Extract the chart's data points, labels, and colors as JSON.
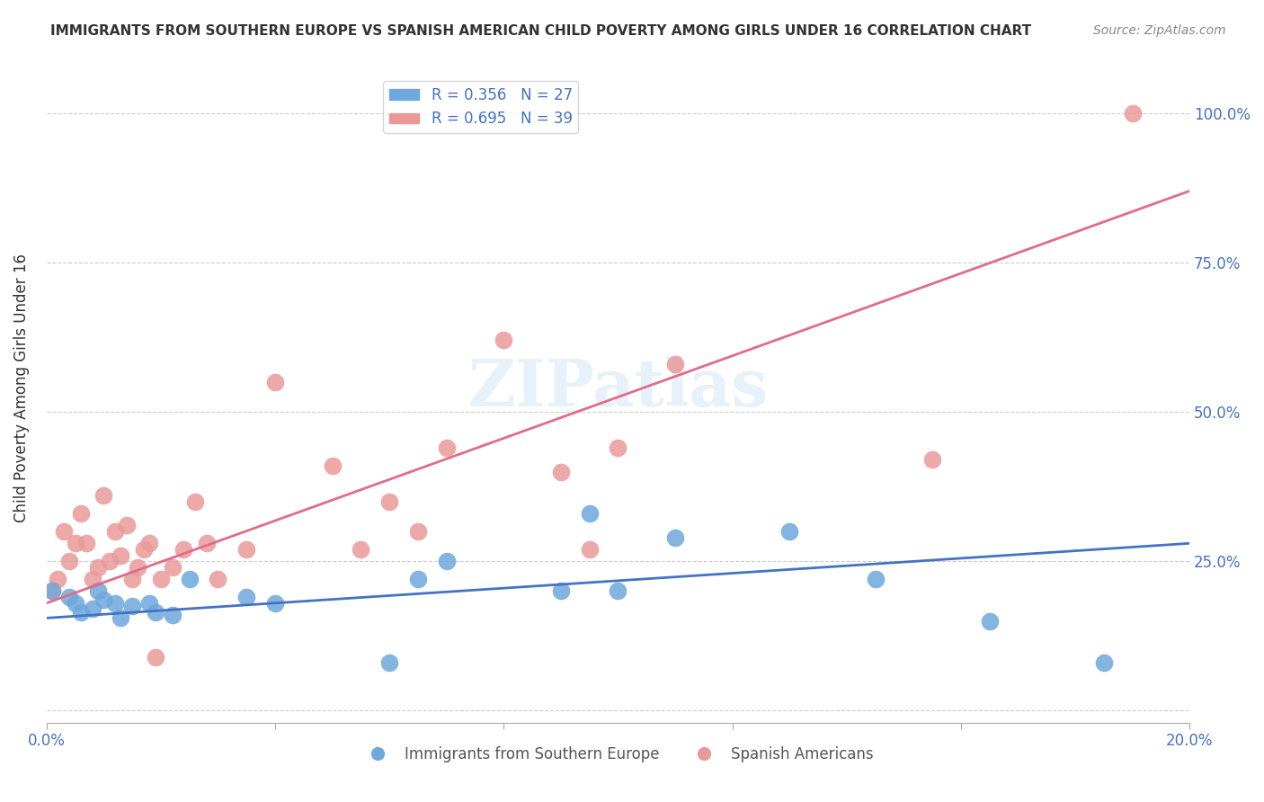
{
  "title": "IMMIGRANTS FROM SOUTHERN EUROPE VS SPANISH AMERICAN CHILD POVERTY AMONG GIRLS UNDER 16 CORRELATION CHART",
  "source": "Source: ZipAtlas.com",
  "xlabel": "",
  "ylabel": "Child Poverty Among Girls Under 16",
  "xlim": [
    0.0,
    0.2
  ],
  "ylim": [
    -0.02,
    1.1
  ],
  "yticks": [
    0.0,
    0.25,
    0.5,
    0.75,
    1.0
  ],
  "ytick_labels": [
    "",
    "25.0%",
    "50.0%",
    "75.0%",
    "100.0%"
  ],
  "xticks": [
    0.0,
    0.04,
    0.08,
    0.12,
    0.16,
    0.2
  ],
  "xtick_labels": [
    "0.0%",
    "",
    "",
    "",
    "",
    "20.0%"
  ],
  "legend_blue_r": "R = 0.356",
  "legend_blue_n": "N = 27",
  "legend_pink_r": "R = 0.695",
  "legend_pink_n": "N = 39",
  "blue_color": "#6fa8dc",
  "pink_color": "#ea9999",
  "trend_blue": "#4472c4",
  "trend_pink": "#e06c88",
  "label_color": "#4472c4",
  "watermark": "ZIPatlas",
  "blue_dots_x": [
    0.001,
    0.004,
    0.005,
    0.006,
    0.008,
    0.009,
    0.01,
    0.012,
    0.013,
    0.015,
    0.018,
    0.019,
    0.022,
    0.025,
    0.035,
    0.04,
    0.06,
    0.065,
    0.07,
    0.09,
    0.095,
    0.1,
    0.11,
    0.13,
    0.145,
    0.165,
    0.185
  ],
  "blue_dots_y": [
    0.2,
    0.19,
    0.18,
    0.165,
    0.17,
    0.2,
    0.185,
    0.18,
    0.155,
    0.175,
    0.18,
    0.165,
    0.16,
    0.22,
    0.19,
    0.18,
    0.08,
    0.22,
    0.25,
    0.2,
    0.33,
    0.2,
    0.29,
    0.3,
    0.22,
    0.15,
    0.08
  ],
  "pink_dots_x": [
    0.001,
    0.002,
    0.003,
    0.004,
    0.005,
    0.006,
    0.007,
    0.008,
    0.009,
    0.01,
    0.011,
    0.012,
    0.013,
    0.014,
    0.015,
    0.016,
    0.017,
    0.018,
    0.019,
    0.02,
    0.022,
    0.024,
    0.026,
    0.028,
    0.03,
    0.035,
    0.04,
    0.05,
    0.055,
    0.06,
    0.065,
    0.07,
    0.08,
    0.09,
    0.095,
    0.1,
    0.11,
    0.155,
    0.19
  ],
  "pink_dots_y": [
    0.2,
    0.22,
    0.3,
    0.25,
    0.28,
    0.33,
    0.28,
    0.22,
    0.24,
    0.36,
    0.25,
    0.3,
    0.26,
    0.31,
    0.22,
    0.24,
    0.27,
    0.28,
    0.09,
    0.22,
    0.24,
    0.27,
    0.35,
    0.28,
    0.22,
    0.27,
    0.55,
    0.41,
    0.27,
    0.35,
    0.3,
    0.44,
    0.62,
    0.4,
    0.27,
    0.44,
    0.58,
    0.42,
    1.0
  ],
  "blue_trend_x": [
    0.0,
    0.2
  ],
  "blue_trend_y": [
    0.155,
    0.28
  ],
  "pink_trend_x": [
    0.0,
    0.2
  ],
  "pink_trend_y": [
    0.18,
    0.87
  ]
}
